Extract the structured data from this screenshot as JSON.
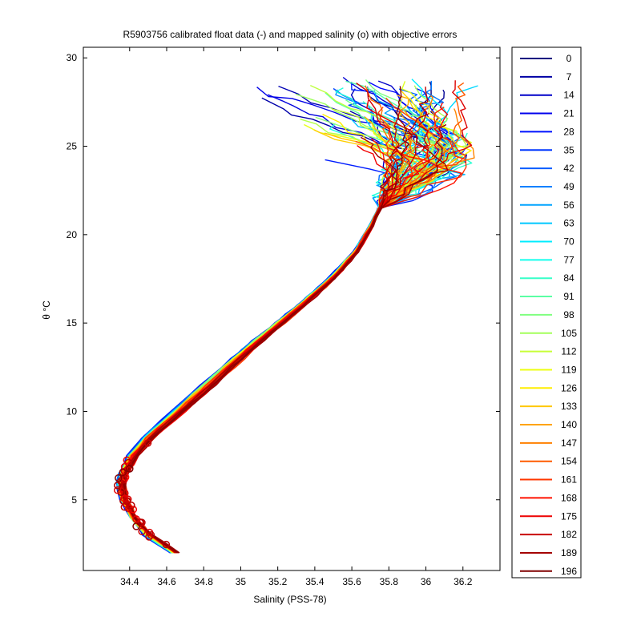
{
  "chart_data": {
    "type": "line",
    "title": "R5903756 calibrated float data (-) and mapped salinity (o) with objective errors",
    "xlabel": "Salinity (PSS-78)",
    "ylabel": "θ °C",
    "xlim": [
      34.15,
      36.4
    ],
    "ylim": [
      1,
      30.6
    ],
    "xticks": [
      "34.4",
      "34.6",
      "34.8",
      "35",
      "35.2",
      "35.4",
      "35.6",
      "35.8",
      "36",
      "36.2"
    ],
    "yticks": [
      "5",
      "10",
      "15",
      "20",
      "25",
      "30"
    ],
    "grid": false,
    "legend_position": "right-outside",
    "series": [
      {
        "name": "0",
        "color": "#00008f"
      },
      {
        "name": "7",
        "color": "#0000b8"
      },
      {
        "name": "14",
        "color": "#0000e0"
      },
      {
        "name": "21",
        "color": "#000aff"
      },
      {
        "name": "28",
        "color": "#0033ff"
      },
      {
        "name": "35",
        "color": "#005cff"
      },
      {
        "name": "42",
        "color": "#0085ff"
      },
      {
        "name": "49",
        "color": "#00adff"
      },
      {
        "name": "56",
        "color": "#00d6ff"
      },
      {
        "name": "63",
        "color": "#00ffff"
      },
      {
        "name": "70",
        "color": "#29ffd6"
      },
      {
        "name": "77",
        "color": "#52ffad"
      },
      {
        "name": "84",
        "color": "#7aff85"
      },
      {
        "name": "91",
        "color": "#a3ff5c"
      },
      {
        "name": "98",
        "color": "#ccff33"
      },
      {
        "name": "105",
        "color": "#f5ff0a"
      },
      {
        "name": "112",
        "color": "#ffe000"
      },
      {
        "name": "119",
        "color": "#ffb800"
      },
      {
        "name": "126",
        "color": "#ff8f00"
      },
      {
        "name": "133",
        "color": "#ff6600"
      },
      {
        "name": "140",
        "color": "#ff3d00"
      },
      {
        "name": "147",
        "color": "#ff1400"
      },
      {
        "name": "154",
        "color": "#eb0000"
      },
      {
        "name": "161",
        "color": "#c20000"
      },
      {
        "name": "168",
        "color": "#990000"
      },
      {
        "name": "175",
        "color": "#800000"
      }
    ],
    "legend_labels": [
      "0",
      "7",
      "14",
      "21",
      "28",
      "35",
      "42",
      "49",
      "56",
      "63",
      "70",
      "77",
      "84",
      "91",
      "98",
      "105",
      "112",
      "119",
      "126",
      "133",
      "140",
      "147",
      "154",
      "161",
      "168",
      "175",
      "182",
      "189",
      "196"
    ],
    "legend_colors": [
      "#00008f",
      "#0000a8",
      "#0000c2",
      "#0000db",
      "#0000f5",
      "#000fff",
      "#0029ff",
      "#0042ff",
      "#005cff",
      "#0075ff",
      "#008fff",
      "#00a8ff",
      "#00c2ff",
      "#00dbff",
      "#00f5ff",
      "#0fffef",
      "#29ffd6",
      "#42ffbd",
      "#5cffa3",
      "#75ff8a",
      "#8fff70",
      "#a8ff57",
      "#c2ff3d",
      "#dbff24",
      "#f5ff0a",
      "#ffef00",
      "#ffd600",
      "#ffbd00",
      "#ffa300",
      "#ff8a00",
      "#ff7000",
      "#ff5700",
      "#ff3d00",
      "#ff2400",
      "#ff0a00",
      "#ef0000",
      "#d60000",
      "#bd0000",
      "#a30000",
      "#8a0000"
    ],
    "envelope": {
      "deep": [
        [
          34.64,
          2.0
        ],
        [
          34.5,
          3.0
        ],
        [
          34.42,
          4.0
        ],
        [
          34.37,
          5.0
        ],
        [
          34.35,
          5.8
        ],
        [
          34.37,
          6.5
        ],
        [
          34.42,
          7.5
        ],
        [
          34.5,
          8.5
        ],
        [
          34.62,
          9.6
        ],
        [
          34.75,
          10.8
        ],
        [
          34.9,
          12.2
        ],
        [
          35.05,
          13.6
        ],
        [
          35.2,
          14.9
        ],
        [
          35.35,
          16.2
        ],
        [
          35.5,
          17.6
        ],
        [
          35.62,
          19.0
        ],
        [
          35.7,
          20.4
        ],
        [
          35.75,
          21.5
        ]
      ],
      "upper_range": {
        "s": [
          35.1,
          36.25
        ],
        "t": [
          21.5,
          29.6
        ]
      }
    }
  }
}
